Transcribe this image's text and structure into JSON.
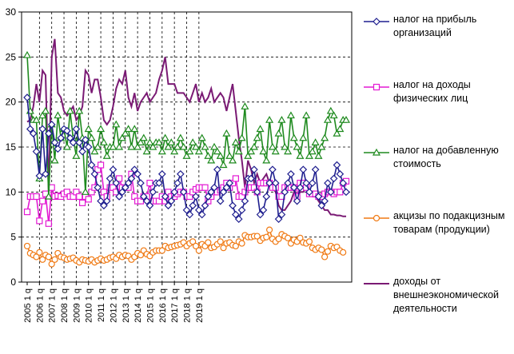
{
  "chart_data": {
    "type": "line",
    "ylim": [
      0,
      30
    ],
    "yticks": [
      0,
      5,
      10,
      15,
      20,
      25,
      30
    ],
    "x_labels": [
      "2005 1 q",
      "2006 1 q",
      "2007 1 q",
      "2008 1 q",
      "2009 1 q",
      "2010 1 q",
      "2011 1 q",
      "2012 1 q",
      "2013 1 q",
      "2014 1 q",
      "2015 1 q",
      "2016 1 q",
      "2017 1 q",
      "2018 1 q",
      "2019 1 q"
    ],
    "grid": true,
    "legend_position": "right",
    "series": [
      {
        "name": "налог на прибыль организаций",
        "color": "#1f1f8f",
        "marker": "diamond",
        "values": [
          20.5,
          17.0,
          16.5,
          14.5,
          11.8,
          17.0,
          12.0,
          16.5,
          17.5,
          15.5,
          14.8,
          16.0,
          17.0,
          16.8,
          16.0,
          15.5,
          17.0,
          15.5,
          14.5,
          15.8,
          15.0,
          13.0,
          12.0,
          10.5,
          9.0,
          8.5,
          9.0,
          11.5,
          12.5,
          11.0,
          9.5,
          10.0,
          10.5,
          11.0,
          11.5,
          12.5,
          12.0,
          11.0,
          9.5,
          9.0,
          8.5,
          10.0,
          11.0,
          11.0,
          12.0,
          9.5,
          8.5,
          9.0,
          10.0,
          11.0,
          12.0,
          10.0,
          8.0,
          7.5,
          8.5,
          9.5,
          8.0,
          7.5,
          8.5,
          9.5,
          10.0,
          10.5,
          12.5,
          9.0,
          10.0,
          10.5,
          11.0,
          8.5,
          7.5,
          7.0,
          8.0,
          9.0,
          11.5,
          11.5,
          12.5,
          10.0,
          7.5,
          8.0,
          9.5,
          11.0,
          12.5,
          11.0,
          7.0,
          7.5,
          10.0,
          11.0,
          12.0,
          10.5,
          9.0,
          10.5,
          12.5,
          11.0,
          10.0,
          11.0,
          12.5,
          9.5,
          8.5,
          9.0,
          11.0,
          10.0,
          11.5,
          13.0,
          12.0,
          11.0,
          10.0
        ]
      },
      {
        "name": "налог на доходы физических лиц",
        "color": "#e31ad3",
        "marker": "square",
        "values": [
          7.8,
          9.5,
          9.5,
          9.5,
          6.8,
          9.0,
          9.8,
          6.5,
          10.5,
          9.5,
          9.6,
          9.5,
          9.8,
          10.0,
          9.5,
          9.5,
          10.0,
          9.5,
          8.8,
          9.5,
          9.2,
          10.0,
          10.5,
          12.5,
          13.0,
          10.0,
          9.5,
          10.5,
          10.5,
          10.0,
          11.5,
          10.5,
          10.5,
          10.5,
          12.0,
          9.5,
          9.0,
          9.0,
          9.5,
          9.5,
          11.0,
          9.0,
          9.0,
          9.0,
          9.5,
          9.0,
          10.0,
          9.5,
          9.5,
          9.8,
          10.0,
          10.0,
          9.5,
          9.5,
          10.0,
          10.3,
          10.5,
          10.5,
          10.5,
          9.0,
          9.5,
          10.0,
          10.0,
          10.2,
          10.5,
          11.0,
          10.5,
          11.0,
          11.5,
          9.5,
          9.5,
          10.0,
          10.5,
          10.5,
          10.5,
          10.0,
          11.0,
          11.0,
          11.0,
          11.0,
          10.5,
          10.5,
          9.5,
          9.5,
          10.5,
          10.5,
          10.5,
          10.5,
          9.5,
          11.0,
          11.0,
          10.5,
          9.8,
          9.8,
          9.8,
          9.5,
          9.5,
          9.8,
          10.0,
          10.0,
          9.8,
          10.0,
          10.0,
          11.0,
          11.2
        ]
      },
      {
        "name": "налог на добавленную стоимость",
        "color": "#1e8a1e",
        "marker": "triangle",
        "values": [
          25.2,
          19.0,
          18.0,
          18.0,
          11.5,
          18.5,
          19.0,
          9.5,
          17.5,
          13.5,
          18.5,
          16.0,
          17.0,
          15.0,
          19.0,
          16.0,
          14.0,
          19.0,
          16.0,
          10.0,
          17.0,
          16.0,
          14.5,
          15.0,
          17.0,
          15.5,
          14.0,
          15.0,
          15.0,
          17.5,
          15.0,
          16.0,
          16.5,
          17.0,
          15.0,
          17.0,
          15.0,
          15.5,
          16.0,
          14.5,
          15.5,
          15.0,
          15.5,
          15.5,
          14.5,
          16.0,
          15.0,
          15.5,
          14.5,
          15.0,
          16.0,
          15.0,
          14.0,
          14.5,
          15.5,
          15.0,
          14.5,
          16.0,
          15.0,
          14.0,
          13.5,
          15.0,
          14.5,
          14.0,
          13.0,
          16.5,
          14.0,
          13.5,
          15.5,
          14.5,
          16.0,
          19.5,
          14.0,
          14.5,
          15.0,
          16.0,
          17.0,
          14.5,
          13.5,
          18.0,
          15.0,
          14.5,
          16.5,
          18.0,
          15.0,
          14.5,
          18.5,
          16.0,
          15.0,
          14.0,
          16.0,
          18.5,
          14.0,
          14.5,
          15.5,
          14.0,
          15.0,
          16.0,
          18.0,
          19.0,
          18.5,
          16.5,
          17.0,
          18.0,
          18.0
        ]
      },
      {
        "name": "акцизы по подакцизным товарам (продукции)",
        "color": "#f07a14",
        "marker": "circle",
        "values": [
          4.0,
          3.2,
          3.0,
          2.8,
          3.3,
          2.5,
          3.0,
          2.8,
          2.0,
          2.5,
          3.2,
          2.8,
          2.7,
          2.5,
          2.6,
          2.7,
          2.4,
          2.2,
          2.5,
          2.4,
          2.3,
          2.5,
          2.2,
          2.4,
          2.6,
          2.4,
          2.5,
          2.7,
          2.8,
          2.6,
          3.0,
          2.8,
          3.0,
          2.9,
          2.5,
          2.8,
          3.2,
          3.0,
          3.5,
          3.1,
          2.9,
          3.3,
          3.5,
          3.5,
          3.5,
          4.0,
          3.8,
          3.9,
          4.0,
          4.1,
          4.2,
          4.4,
          4.0,
          4.3,
          4.5,
          4.0,
          3.5,
          4.2,
          4.0,
          4.4,
          3.8,
          3.9,
          4.2,
          4.5,
          3.8,
          4.3,
          4.4,
          4.1,
          4.0,
          4.5,
          4.3,
          5.2,
          5.0,
          5.0,
          5.1,
          5.1,
          4.6,
          4.9,
          5.0,
          5.8,
          4.8,
          4.5,
          4.8,
          5.3,
          5.1,
          4.9,
          4.3,
          4.7,
          4.5,
          4.9,
          4.4,
          4.3,
          4.5,
          3.8,
          3.6,
          3.8,
          3.6,
          2.8,
          3.4,
          4.0,
          3.8,
          3.9,
          3.5,
          3.3
        ]
      },
      {
        "name": "доходы от внешнеэкономической деятельности",
        "color": "#7a1a74",
        "marker": "none",
        "values": [
          17.8,
          18.0,
          19.5,
          22.0,
          20.0,
          23.5,
          23.0,
          10.0,
          25.0,
          27.0,
          21.0,
          20.5,
          19.0,
          18.5,
          19.0,
          19.5,
          18.0,
          18.5,
          19.5,
          23.5,
          23.0,
          21.0,
          22.5,
          22.5,
          20.5,
          18.0,
          17.5,
          18.0,
          19.5,
          21.5,
          22.5,
          22.0,
          23.5,
          20.5,
          19.5,
          21.0,
          19.0,
          20.0,
          20.5,
          21.0,
          20.0,
          20.5,
          21.0,
          22.5,
          23.5,
          25.0,
          22.0,
          22.0,
          22.0,
          21.0,
          21.0,
          21.0,
          20.5,
          20.0,
          21.0,
          22.0,
          20.0,
          21.0,
          20.0,
          20.5,
          21.5,
          20.0,
          20.5,
          21.0,
          20.5,
          19.0,
          20.5,
          22.0,
          19.0,
          16.0,
          13.5,
          10.5,
          13.5,
          12.5,
          11.0,
          12.0,
          11.0,
          11.5,
          12.0,
          11.0,
          10.5,
          10.0,
          8.5,
          8.0,
          8.0,
          8.5,
          9.0,
          10.0,
          9.5,
          10.0,
          10.0,
          10.5,
          10.0,
          9.5,
          9.5,
          9.0,
          8.5,
          8.0,
          8.0,
          7.5,
          7.5,
          7.4,
          7.4,
          7.3,
          7.3
        ]
      }
    ]
  }
}
